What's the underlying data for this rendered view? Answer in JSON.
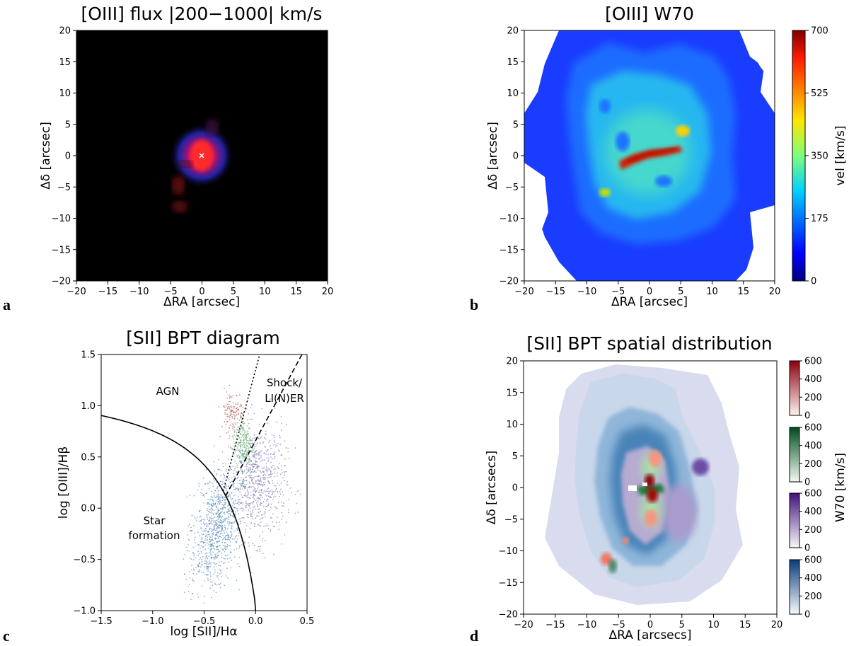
{
  "chart_data": [
    {
      "panel": "a",
      "type": "heatmap",
      "title": "[OIII] flux |200−1000| km/s",
      "xlabel": "ΔRA [arcsec]",
      "ylabel": "Δδ [arcsec]",
      "xlim": [
        -20,
        20
      ],
      "ylim": [
        -20,
        20
      ],
      "xticks": [
        -20,
        -15,
        -10,
        -5,
        0,
        5,
        10,
        15,
        20
      ],
      "yticks": [
        -20,
        -15,
        -10,
        -5,
        0,
        5,
        10,
        15,
        20
      ],
      "center_marker": [
        0,
        0
      ],
      "colors": {
        "background": "#000000",
        "core": "#ff1010",
        "halo": "#2a2aff"
      }
    },
    {
      "panel": "b",
      "type": "heatmap",
      "title": "[OIII] W70",
      "xlabel": "ΔRA [arcsec]",
      "ylabel": "Δδ [arcsec]",
      "xlim": [
        -20,
        20
      ],
      "ylim": [
        -20,
        20
      ],
      "xticks": [
        -20,
        -15,
        -10,
        -5,
        0,
        5,
        10,
        15,
        20
      ],
      "yticks": [
        -20,
        -15,
        -10,
        -5,
        0,
        5,
        10,
        15,
        20
      ],
      "colorbar": {
        "label": "vel [km/s]",
        "range": [
          0,
          700
        ],
        "ticks": [
          0,
          175,
          350,
          525,
          700
        ],
        "cmap": "jet"
      }
    },
    {
      "panel": "c",
      "type": "scatter",
      "title": "[SII] BPT diagram",
      "xlabel": "log [SII]/Hα",
      "ylabel": "log [OIII]/Hβ",
      "xlim": [
        -1.5,
        0.5
      ],
      "ylim": [
        -1.0,
        1.5
      ],
      "xticks": [
        -1.5,
        -1.0,
        -0.5,
        0.0,
        0.5
      ],
      "yticks": [
        -1.0,
        -0.5,
        0.0,
        0.5,
        1.0,
        1.5
      ],
      "region_labels": [
        "AGN",
        "Shock/",
        "LI(N)ER",
        "Star",
        "formation"
      ],
      "clouds": [
        {
          "region": "star formation",
          "color": "#3a76ad",
          "center": [
            -0.38,
            -0.2
          ],
          "spread": [
            0.12,
            0.3
          ]
        },
        {
          "region": "LI(N)ER",
          "color": "#6a5aa8",
          "center": [
            0.02,
            0.25
          ],
          "spread": [
            0.14,
            0.28
          ]
        },
        {
          "region": "shock",
          "color": "#3c9a4a",
          "center": [
            -0.12,
            0.62
          ],
          "spread": [
            0.05,
            0.16
          ]
        },
        {
          "region": "AGN",
          "color": "#b03a3a",
          "center": [
            -0.22,
            0.95
          ],
          "spread": [
            0.06,
            0.1
          ]
        }
      ]
    },
    {
      "panel": "d",
      "type": "heatmap",
      "title": "[SII] BPT spatial distribution",
      "xlabel": "ΔRA [arcsecs]",
      "ylabel": "Δδ [arcsecs]",
      "xlim": [
        -20,
        20
      ],
      "ylim": [
        -20,
        20
      ],
      "xticks": [
        -20,
        -15,
        -10,
        -5,
        0,
        5,
        10,
        15,
        20
      ],
      "yticks": [
        -20,
        -15,
        -10,
        -5,
        0,
        5,
        10,
        15,
        20
      ],
      "colorbar_label": "W70 [km/s]",
      "colorbars": [
        {
          "cmap": "Reds",
          "ticks": [
            0,
            200,
            400,
            600
          ],
          "low": "#fff3ee",
          "high": "#8b0010"
        },
        {
          "cmap": "Greens",
          "ticks": [
            0,
            200,
            400,
            600
          ],
          "low": "#f4fbf2",
          "high": "#004a1e"
        },
        {
          "cmap": "Purples",
          "ticks": [
            0,
            200,
            400,
            600
          ],
          "low": "#f8f6fb",
          "high": "#42117a"
        },
        {
          "cmap": "Blues",
          "ticks": [
            0,
            200,
            400,
            600
          ],
          "low": "#f6fafe",
          "high": "#0b3a78"
        }
      ]
    }
  ],
  "panel_letters": [
    "a",
    "b",
    "c",
    "d"
  ]
}
